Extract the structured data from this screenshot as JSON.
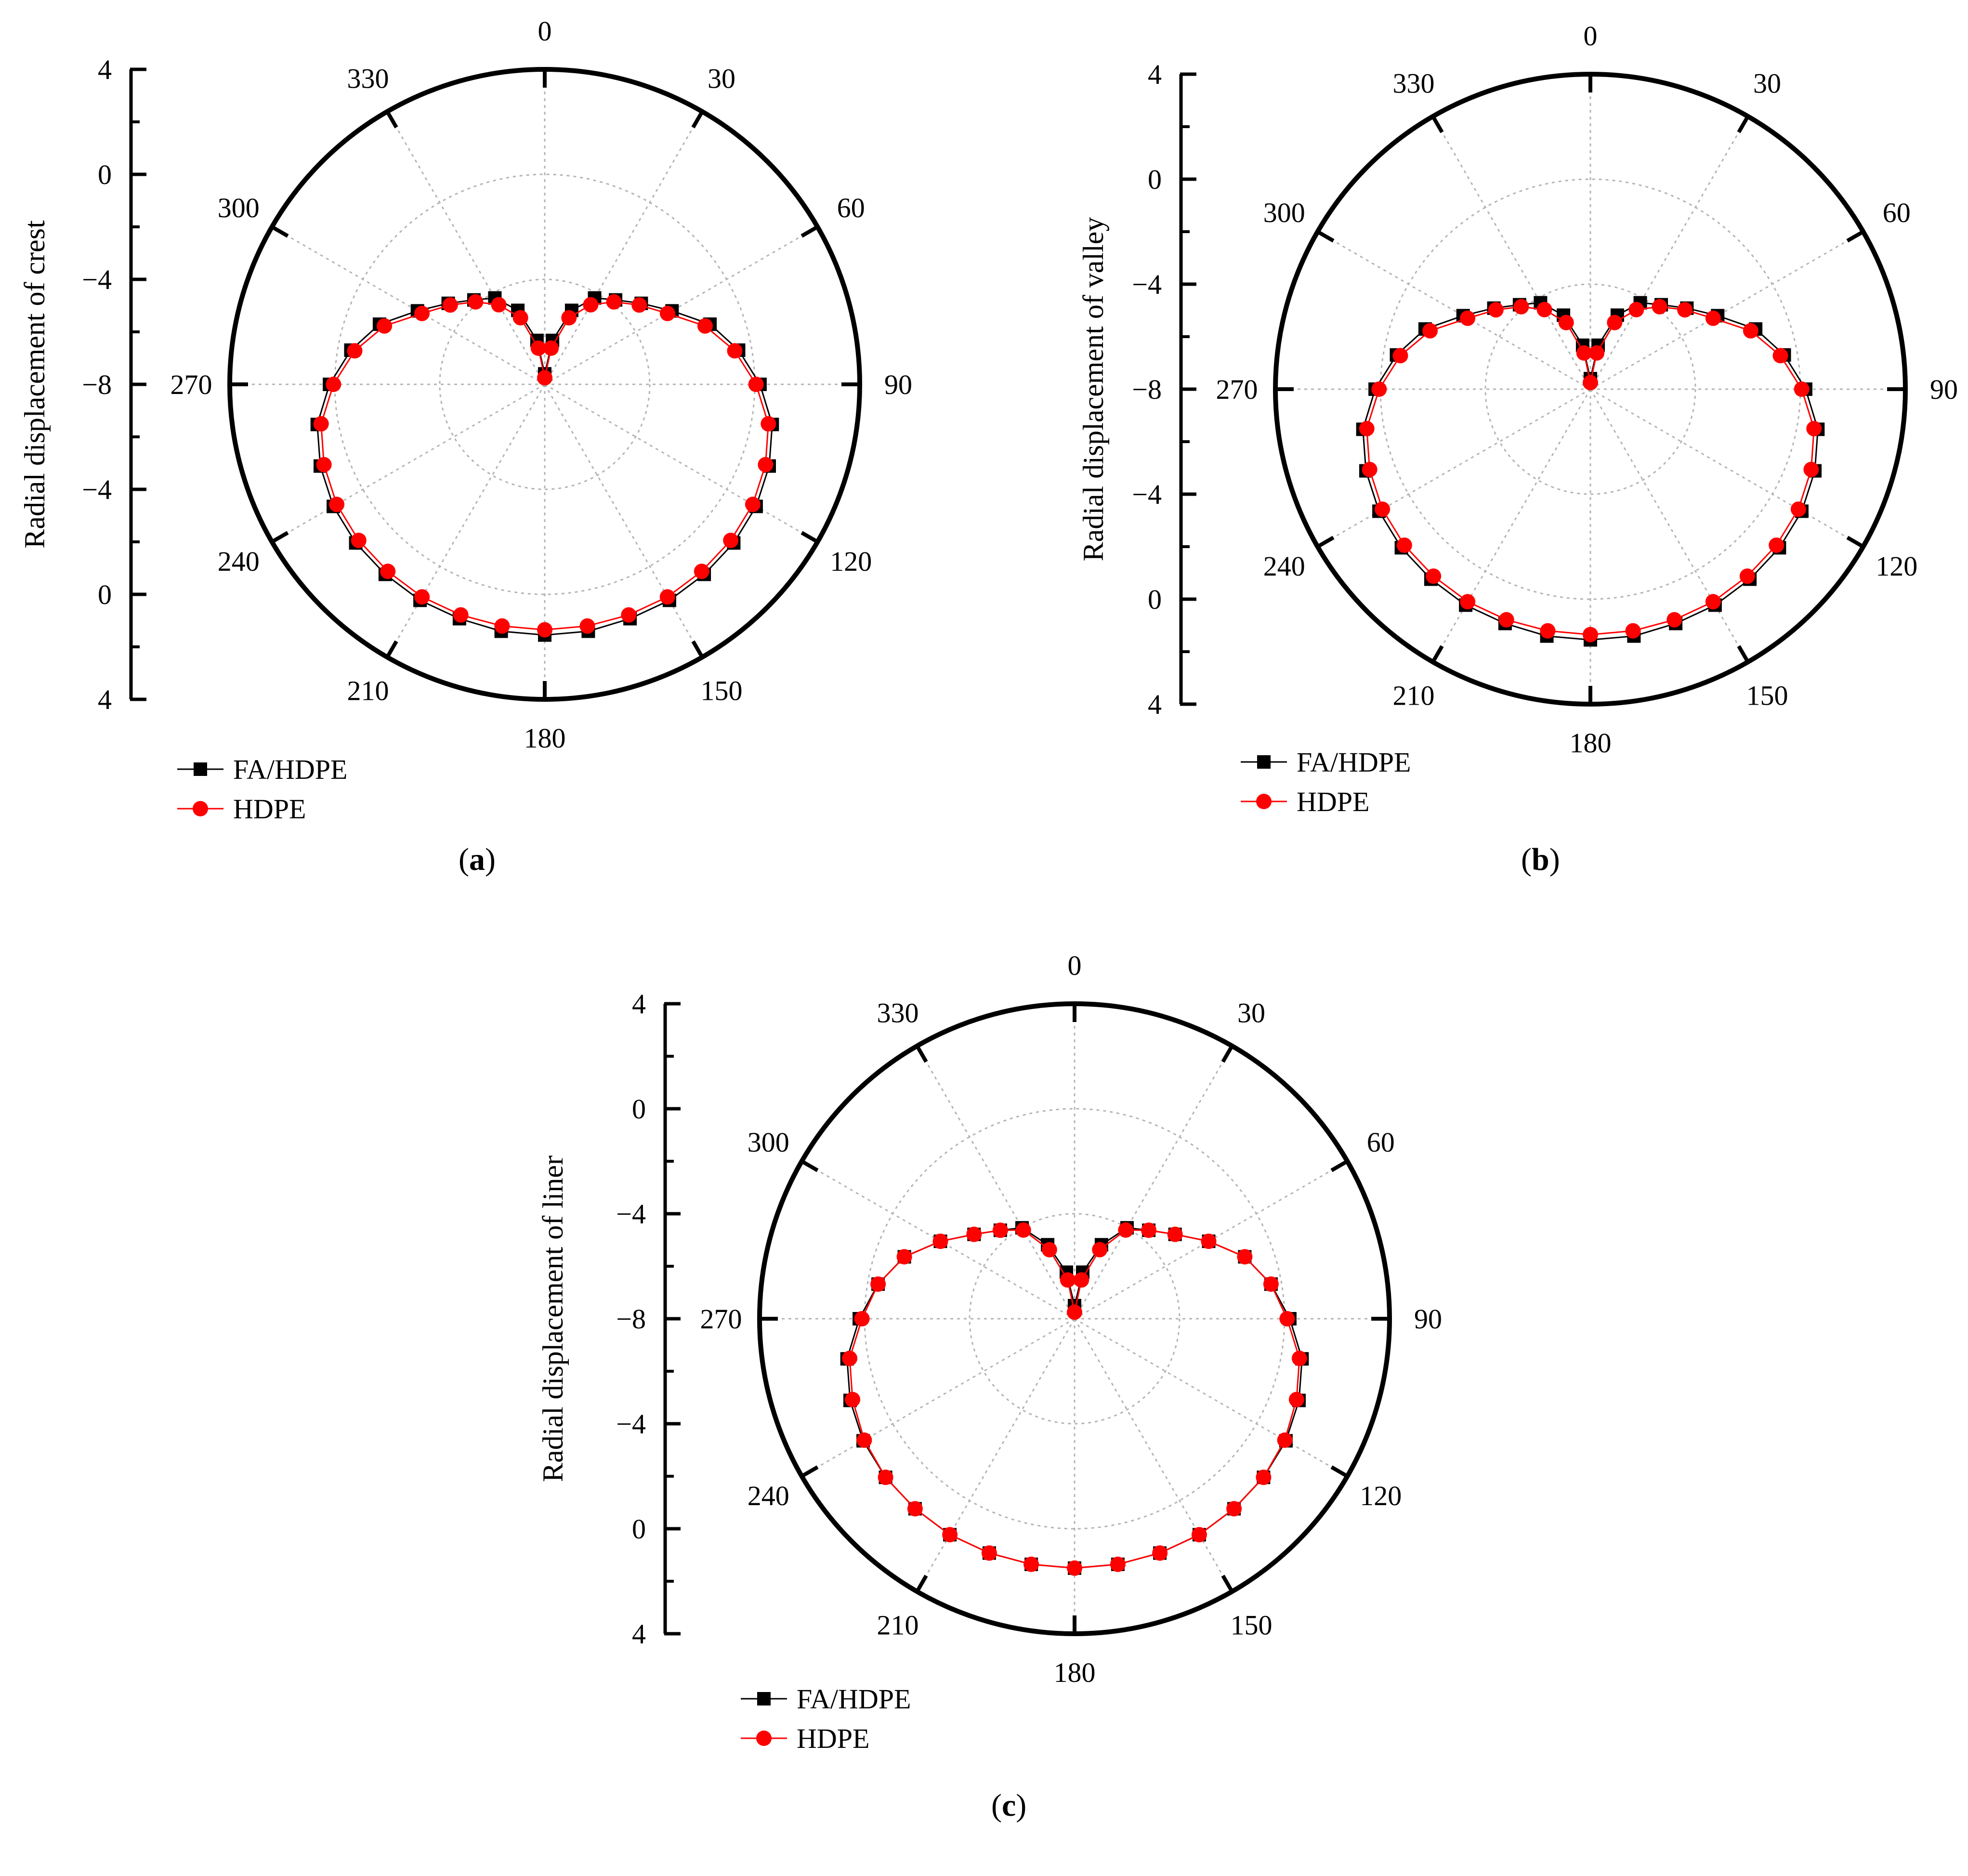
{
  "colors": {
    "fa_hdpe": "#000000",
    "hdpe": "#ff0000",
    "grid": "#b4b4b4",
    "axis": "#000000"
  },
  "chart_data": [
    {
      "type": "polar-line",
      "panel": "a",
      "caption": {
        "open": "(",
        "letter": "a",
        "close": ")"
      },
      "radial_axis_title": "Radial displacement of crest",
      "radial_axis_tick_labels": [
        "4",
        "0",
        "−4",
        "−8",
        "−4",
        "0",
        "4"
      ],
      "angle_tick_labels": [
        "0",
        "30",
        "60",
        "90",
        "120",
        "150",
        "180",
        "210",
        "240",
        "270",
        "300",
        "330"
      ],
      "radial_range": [
        -8,
        4
      ],
      "angle_direction": "clockwise",
      "zero_angle": "top",
      "grid": true,
      "legend_position": "bottom-left",
      "angles_deg": [
        0,
        10,
        20,
        30,
        40,
        50,
        60,
        70,
        80,
        90,
        100,
        110,
        120,
        130,
        140,
        150,
        160,
        170,
        180,
        190,
        200,
        210,
        220,
        230,
        240,
        250,
        260,
        270,
        280,
        290,
        300,
        310,
        320,
        330,
        340,
        350
      ],
      "series": [
        {
          "name": "FA/HDPE",
          "color_key": "fa_hdpe",
          "marker": "square",
          "values": [
            -7.6,
            -6.3,
            -5.0,
            -4.2,
            -3.8,
            -3.2,
            -2.4,
            -1.3,
            -0.5,
            0.2,
            0.8,
            1.1,
            1.3,
            1.4,
            1.45,
            1.5,
            1.5,
            1.55,
            1.55,
            1.55,
            1.5,
            1.5,
            1.45,
            1.4,
            1.3,
            1.1,
            0.8,
            0.2,
            -0.5,
            -1.3,
            -2.4,
            -3.2,
            -3.8,
            -4.2,
            -5.0,
            -6.3
          ]
        },
        {
          "name": "HDPE",
          "color_key": "hdpe",
          "marker": "circle",
          "values": [
            -7.75,
            -6.6,
            -5.3,
            -4.5,
            -3.9,
            -3.3,
            -2.6,
            -1.5,
            -0.65,
            0.05,
            0.65,
            0.95,
            1.15,
            1.25,
            1.3,
            1.35,
            1.35,
            1.35,
            1.35,
            1.35,
            1.35,
            1.35,
            1.3,
            1.25,
            1.15,
            0.95,
            0.65,
            0.05,
            -0.65,
            -1.5,
            -2.6,
            -3.3,
            -3.9,
            -4.5,
            -5.3,
            -6.6
          ]
        }
      ]
    },
    {
      "type": "polar-line",
      "panel": "b",
      "caption": {
        "open": "(",
        "letter": "b",
        "close": ")"
      },
      "radial_axis_title": "Radial displacement of valley",
      "radial_axis_tick_labels": [
        "4",
        "0",
        "−4",
        "−8",
        "−4",
        "0",
        "4"
      ],
      "angle_tick_labels": [
        "0",
        "30",
        "60",
        "90",
        "120",
        "150",
        "180",
        "210",
        "240",
        "270",
        "300",
        "330"
      ],
      "radial_range": [
        -8,
        4
      ],
      "angle_direction": "clockwise",
      "zero_angle": "top",
      "grid": true,
      "legend_position": "bottom-left",
      "angles_deg": [
        0,
        10,
        20,
        30,
        40,
        50,
        60,
        70,
        80,
        90,
        100,
        110,
        120,
        130,
        140,
        150,
        160,
        170,
        180,
        190,
        200,
        210,
        220,
        230,
        240,
        250,
        260,
        270,
        280,
        290,
        300,
        310,
        320,
        330,
        340,
        350
      ],
      "series": [
        {
          "name": "FA/HDPE",
          "color_key": "fa_hdpe",
          "marker": "square",
          "values": [
            -7.6,
            -6.3,
            -5.0,
            -4.2,
            -3.8,
            -3.2,
            -2.4,
            -1.3,
            -0.5,
            0.2,
            0.8,
            1.1,
            1.3,
            1.4,
            1.45,
            1.5,
            1.5,
            1.55,
            1.55,
            1.55,
            1.5,
            1.5,
            1.45,
            1.4,
            1.3,
            1.1,
            0.8,
            0.2,
            -0.5,
            -1.3,
            -2.4,
            -3.2,
            -3.8,
            -4.2,
            -5.0,
            -6.3
          ]
        },
        {
          "name": "HDPE",
          "color_key": "hdpe",
          "marker": "circle",
          "values": [
            -7.75,
            -6.6,
            -5.3,
            -4.5,
            -3.9,
            -3.3,
            -2.6,
            -1.5,
            -0.65,
            0.05,
            0.65,
            0.95,
            1.15,
            1.25,
            1.3,
            1.35,
            1.35,
            1.35,
            1.35,
            1.35,
            1.35,
            1.35,
            1.3,
            1.25,
            1.15,
            0.95,
            0.65,
            0.05,
            -0.65,
            -1.5,
            -2.6,
            -3.3,
            -3.9,
            -4.5,
            -5.3,
            -6.6
          ]
        }
      ]
    },
    {
      "type": "polar-line",
      "panel": "c",
      "caption": {
        "open": "(",
        "letter": "c",
        "close": ")"
      },
      "radial_axis_title": "Radial displacement of liner",
      "radial_axis_tick_labels": [
        "4",
        "0",
        "−4",
        "−8",
        "−4",
        "0",
        "4"
      ],
      "angle_tick_labels": [
        "0",
        "30",
        "60",
        "90",
        "120",
        "150",
        "180",
        "210",
        "240",
        "270",
        "300",
        "330"
      ],
      "radial_range": [
        -8,
        4
      ],
      "angle_direction": "clockwise",
      "zero_angle": "top",
      "grid": true,
      "legend_position": "bottom-left",
      "angles_deg": [
        0,
        10,
        20,
        30,
        40,
        50,
        60,
        70,
        80,
        90,
        100,
        110,
        120,
        130,
        140,
        150,
        160,
        170,
        180,
        190,
        200,
        210,
        220,
        230,
        240,
        250,
        260,
        270,
        280,
        290,
        300,
        310,
        320,
        330,
        340,
        350
      ],
      "series": [
        {
          "name": "FA/HDPE",
          "color_key": "fa_hdpe",
          "marker": "square",
          "values": [
            -7.5,
            -6.2,
            -5.0,
            -4.0,
            -3.6,
            -3.0,
            -2.1,
            -1.1,
            -0.4,
            0.2,
            0.8,
            1.1,
            1.3,
            1.4,
            1.45,
            1.5,
            1.5,
            1.5,
            1.5,
            1.5,
            1.5,
            1.5,
            1.45,
            1.4,
            1.3,
            1.1,
            0.8,
            0.2,
            -0.4,
            -1.1,
            -2.1,
            -3.0,
            -3.6,
            -4.0,
            -5.0,
            -6.2
          ]
        },
        {
          "name": "HDPE",
          "color_key": "hdpe",
          "marker": "circle",
          "values": [
            -7.75,
            -6.5,
            -5.2,
            -4.1,
            -3.6,
            -3.0,
            -2.1,
            -1.1,
            -0.4,
            0.1,
            0.7,
            1.0,
            1.25,
            1.4,
            1.45,
            1.5,
            1.5,
            1.5,
            1.5,
            1.5,
            1.5,
            1.5,
            1.45,
            1.4,
            1.25,
            1.0,
            0.7,
            0.1,
            -0.4,
            -1.1,
            -2.1,
            -3.0,
            -3.6,
            -4.1,
            -5.2,
            -6.5
          ]
        }
      ]
    }
  ]
}
